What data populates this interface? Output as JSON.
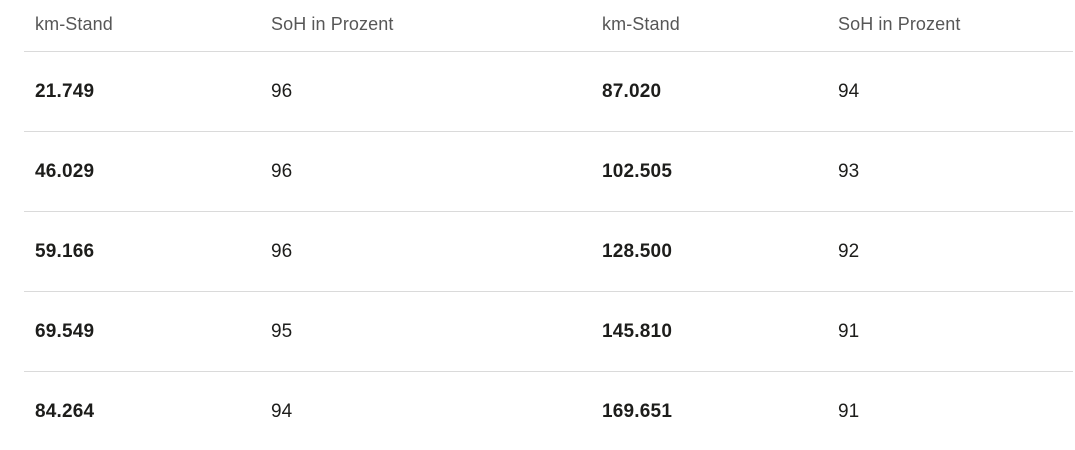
{
  "colors": {
    "background": "#ffffff",
    "header_text": "#575757",
    "value_text": "#1d1d1b",
    "divider": "#dadada"
  },
  "table": {
    "headers": [
      "km-Stand",
      "SoH in Prozent",
      "km-Stand",
      "SoH in Prozent"
    ],
    "rows": [
      [
        "21.749",
        "96",
        "87.020",
        "94"
      ],
      [
        "46.029",
        "96",
        "102.505",
        "93"
      ],
      [
        "59.166",
        "96",
        "128.500",
        "92"
      ],
      [
        "69.549",
        "95",
        "145.810",
        "91"
      ],
      [
        "84.264",
        "94",
        "169.651",
        "91"
      ]
    ]
  },
  "chart_data": {
    "type": "table",
    "title": "",
    "columns": [
      "km-Stand",
      "SoH in Prozent",
      "km-Stand",
      "SoH in Prozent"
    ],
    "rows": [
      [
        "21.749",
        "96",
        "87.020",
        "94"
      ],
      [
        "46.029",
        "96",
        "102.505",
        "93"
      ],
      [
        "59.166",
        "96",
        "128.500",
        "92"
      ],
      [
        "69.549",
        "95",
        "145.810",
        "91"
      ],
      [
        "84.264",
        "94",
        "169.651",
        "91"
      ]
    ],
    "dataset": {
      "x_label": "km-Stand",
      "y_label": "SoH in Prozent",
      "points": [
        {
          "km": 21749,
          "soh": 96
        },
        {
          "km": 46029,
          "soh": 96
        },
        {
          "km": 59166,
          "soh": 96
        },
        {
          "km": 69549,
          "soh": 95
        },
        {
          "km": 84264,
          "soh": 94
        },
        {
          "km": 87020,
          "soh": 94
        },
        {
          "km": 102505,
          "soh": 93
        },
        {
          "km": 128500,
          "soh": 92
        },
        {
          "km": 145810,
          "soh": 91
        },
        {
          "km": 169651,
          "soh": 91
        }
      ]
    }
  }
}
